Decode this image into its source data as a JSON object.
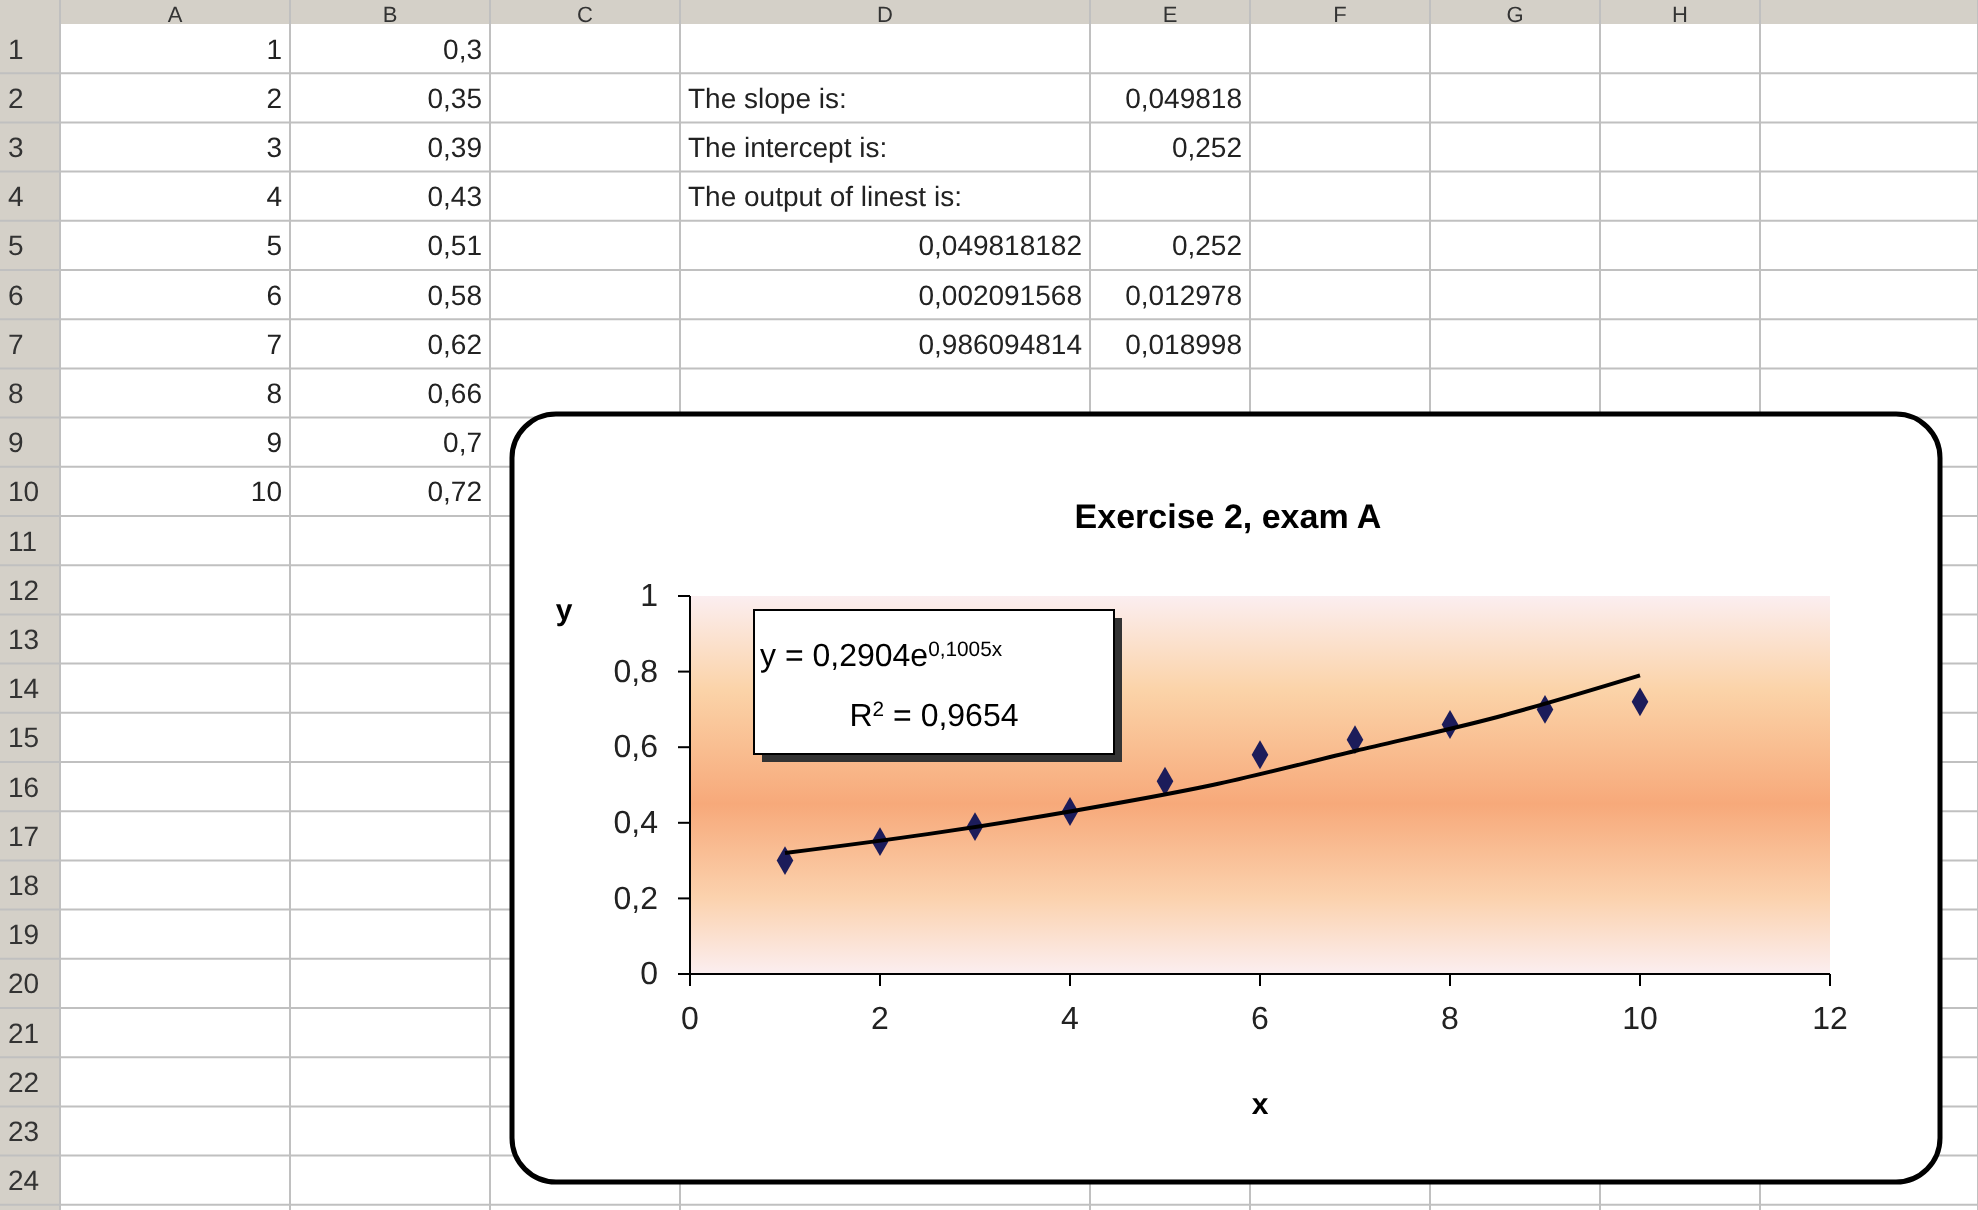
{
  "chart_data": [
    {
      "type": "heatmap",
      "categories": [
        "A",
        "B",
        "C",
        "D",
        "E",
        "F",
        "G",
        "H"
      ],
      "y_categories": [
        "1",
        "2",
        "3",
        "4",
        "5",
        "6",
        "7",
        "8",
        "9",
        "10",
        "11",
        "12",
        "13",
        "14",
        "15",
        "16",
        "17",
        "18",
        "19",
        "20",
        "21",
        "22",
        "23",
        "24"
      ],
      "cells": [
        [
          null,
          null,
          null,
          null,
          null,
          null,
          null,
          null
        ],
        [
          null,
          null,
          null,
          null,
          null,
          null,
          null,
          null
        ],
        [
          null,
          null,
          null,
          null,
          null,
          null,
          null,
          null
        ],
        [
          null,
          null,
          null,
          null,
          null,
          null,
          null,
          null
        ],
        [
          null,
          null,
          null,
          null,
          null,
          null,
          null,
          null
        ],
        [
          null,
          null,
          null,
          null,
          null,
          null,
          null,
          null
        ],
        [
          null,
          null,
          null,
          null,
          null,
          null,
          null,
          null
        ],
        [
          null,
          null,
          null,
          null,
          null,
          null,
          null,
          null
        ],
        [
          null,
          null,
          null,
          null,
          null,
          null,
          null,
          null
        ],
        [
          null,
          null,
          null,
          null,
          null,
          null,
          null,
          null
        ],
        [
          null,
          null,
          null,
          null,
          null,
          null,
          null,
          null
        ],
        [
          null,
          null,
          null,
          null,
          null,
          null,
          null,
          null
        ],
        [
          null,
          null,
          null,
          null,
          null,
          null,
          null,
          null
        ],
        [
          null,
          null,
          null,
          null,
          null,
          null,
          null,
          null
        ],
        [
          null,
          null,
          null,
          null,
          null,
          null,
          null,
          null
        ],
        [
          null,
          null,
          null,
          null,
          null,
          null,
          null,
          null
        ],
        [
          null,
          null,
          null,
          null,
          null,
          null,
          null,
          null
        ],
        [
          null,
          null,
          null,
          null,
          null,
          null,
          null,
          null
        ],
        [
          null,
          null,
          null,
          null,
          null,
          null,
          null,
          null
        ],
        [
          null,
          null,
          null,
          null,
          null,
          null,
          null,
          null
        ],
        [
          null,
          null,
          null,
          null,
          null,
          null,
          null,
          null
        ],
        [
          null,
          null,
          null,
          null,
          null,
          null,
          null,
          null
        ],
        [
          null,
          null,
          null,
          null,
          null,
          null,
          null,
          null
        ],
        [
          null,
          null,
          null,
          null,
          null,
          null,
          null,
          null
        ]
      ],
      "cell_labels": [
        [
          "1",
          "0,3",
          null,
          null,
          null,
          null,
          null,
          null
        ],
        [
          "2",
          "0,35",
          null,
          "The slope is:",
          "0,049818",
          null,
          null,
          null
        ],
        [
          "3",
          "0,39",
          null,
          "The intercept is:",
          "0,252",
          null,
          null,
          null
        ],
        [
          "4",
          "0,43",
          null,
          "The output of linest is:",
          null,
          null,
          null,
          null
        ],
        [
          "5",
          "0,51",
          null,
          "0,049818182",
          "0,252",
          null,
          null,
          null
        ],
        [
          "6",
          "0,58",
          null,
          "0,002091568",
          "0,012978",
          null,
          null,
          null
        ],
        [
          "7",
          "0,62",
          null,
          "0,986094814",
          "0,018998",
          null,
          null,
          null
        ],
        [
          "8",
          "0,66",
          null,
          null,
          null,
          null,
          null,
          null
        ],
        [
          "9",
          "0,7",
          null,
          null,
          null,
          null,
          null,
          null
        ],
        [
          "10",
          "0,72",
          null,
          null,
          null,
          null,
          null,
          null
        ]
      ]
    },
    {
      "type": "scatter",
      "title": "Exercise 2, exam A",
      "xlabel": "x",
      "ylabel": "y",
      "xlim": [
        0,
        12
      ],
      "xticks": [
        0,
        2,
        4,
        6,
        8,
        10,
        12
      ],
      "ylim": [
        0,
        1
      ],
      "yticks": [
        0,
        {
          "value": 0.2,
          "label": "0,2"
        },
        {
          "value": 0.4,
          "label": "0,4"
        },
        {
          "value": 0.6,
          "label": "0,6"
        },
        {
          "value": 0.8,
          "label": "0,8"
        },
        1
      ],
      "grid": false,
      "annotations": [
        "y = 0,2904e$^{0,1005x}$",
        "R$^{2}$ = 0,9654"
      ],
      "series": [
        {
          "type": "scatter",
          "color": "#1c1c5a",
          "marker": "diamond",
          "x": [
            1,
            2,
            3,
            4,
            5,
            6,
            7,
            8,
            9,
            10
          ],
          "values": [
            0.3,
            0.35,
            0.39,
            0.43,
            0.51,
            0.58,
            0.62,
            0.66,
            0.7,
            0.72
          ]
        },
        {
          "type": "line",
          "color": "#000000",
          "marker": "none",
          "line_style": "solid",
          "x": [
            1,
            2.5,
            4,
            5.5,
            7,
            8.5,
            10
          ],
          "values": [
            0.32,
            0.37,
            0.43,
            0.5,
            0.59,
            0.68,
            0.79
          ]
        }
      ]
    }
  ]
}
